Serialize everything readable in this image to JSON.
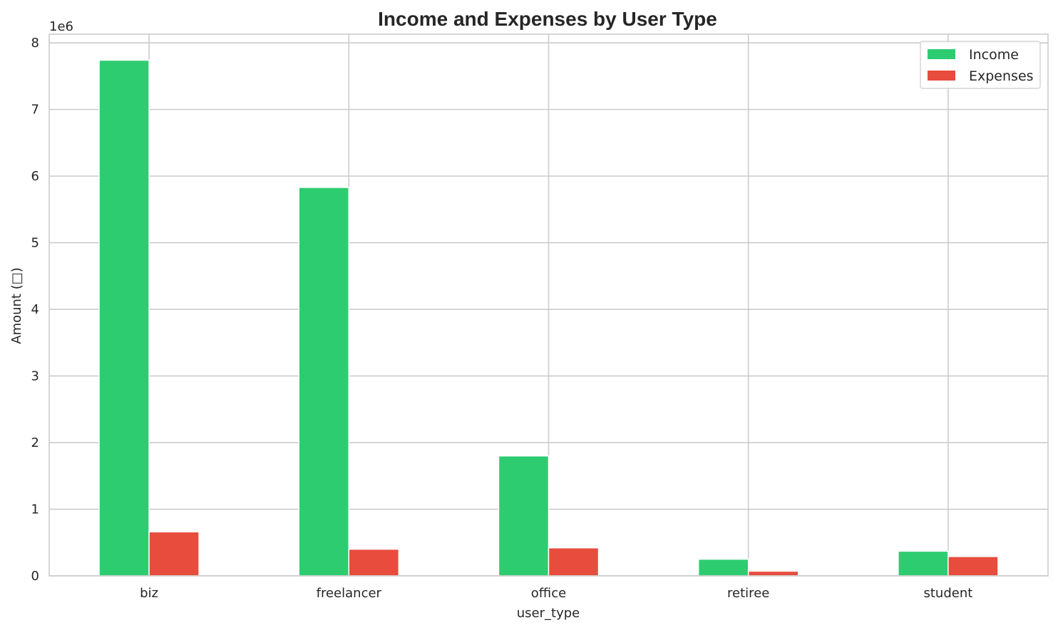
{
  "chart_data": {
    "type": "bar",
    "title": "Income and Expenses by User Type",
    "xlabel": "user_type",
    "ylabel": "Amount (□)",
    "y_scale_label": "1e6",
    "categories": [
      "biz",
      "freelancer",
      "office",
      "retiree",
      "student"
    ],
    "series": [
      {
        "name": "Income",
        "color": "#2ecc71",
        "values": [
          7740000,
          5830000,
          1800000,
          250000,
          370000
        ]
      },
      {
        "name": "Expenses",
        "color": "#e74c3c",
        "values": [
          660000,
          400000,
          420000,
          70000,
          290000
        ]
      }
    ],
    "ylim": [
      0,
      8130000
    ],
    "yticks": [
      0,
      1000000,
      2000000,
      3000000,
      4000000,
      5000000,
      6000000,
      7000000,
      8000000
    ],
    "ytick_labels": [
      "0",
      "1",
      "2",
      "3",
      "4",
      "5",
      "6",
      "7",
      "8"
    ],
    "grid": true,
    "legend_position": "top-right"
  }
}
